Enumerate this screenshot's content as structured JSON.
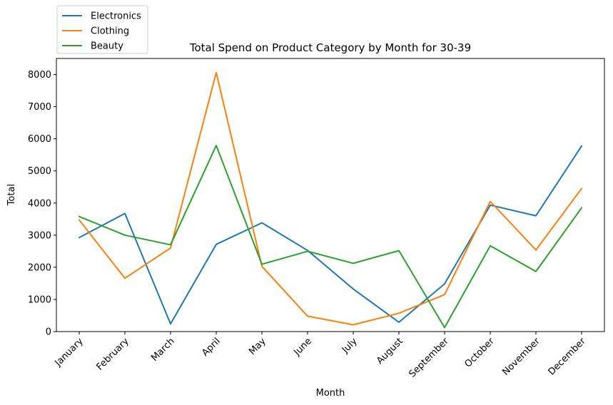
{
  "chart_data": {
    "type": "line",
    "title": "Total Spend on Product Category by Month for 30-39",
    "xlabel": "Month",
    "ylabel": "Total",
    "categories": [
      "January",
      "February",
      "March",
      "April",
      "May",
      "June",
      "July",
      "August",
      "September",
      "October",
      "November",
      "December"
    ],
    "ylim": [
      0,
      8500
    ],
    "yticks": [
      0,
      1000,
      2000,
      3000,
      4000,
      5000,
      6000,
      7000,
      8000
    ],
    "grid": false,
    "legend_position": "top-left",
    "series": [
      {
        "name": "Electronics",
        "color": "#1f77b4",
        "values": [
          2925,
          3675,
          240,
          2715,
          3385,
          2525,
          1325,
          290,
          1485,
          3935,
          3605,
          5775
        ]
      },
      {
        "name": "Clothing",
        "color": "#ff7f0e",
        "values": [
          3470,
          1660,
          2600,
          8060,
          2030,
          480,
          210,
          570,
          1150,
          4050,
          2540,
          4450
        ]
      },
      {
        "name": "Beauty",
        "color": "#2ca02c",
        "values": [
          3580,
          3000,
          2700,
          5790,
          2095,
          2500,
          2125,
          2520,
          125,
          2670,
          1870,
          3850
        ]
      }
    ]
  }
}
